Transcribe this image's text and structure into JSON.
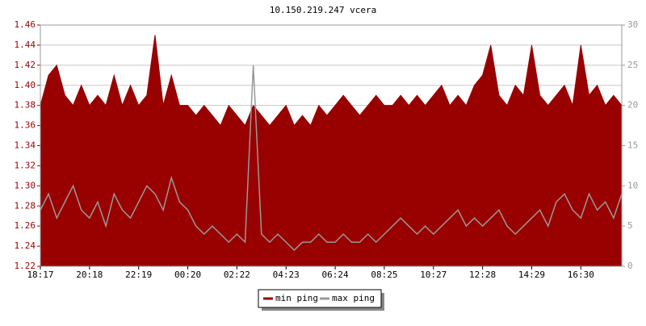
{
  "chart_data": {
    "type": "line",
    "title": "10.150.219.247 vcera",
    "categories": [
      "18:17",
      null,
      null,
      null,
      null,
      null,
      "20:18",
      null,
      null,
      null,
      null,
      null,
      "22:19",
      null,
      null,
      null,
      null,
      null,
      "00:20",
      null,
      null,
      null,
      null,
      null,
      "02:22",
      null,
      null,
      null,
      null,
      null,
      "04:23",
      null,
      null,
      null,
      null,
      null,
      "06:24",
      null,
      null,
      null,
      null,
      null,
      "08:25",
      null,
      null,
      null,
      null,
      null,
      "10:27",
      null,
      null,
      null,
      null,
      null,
      "12:28",
      null,
      null,
      null,
      null,
      null,
      "14:29",
      null,
      null,
      null,
      null,
      null,
      "16:30",
      null,
      null,
      null,
      null,
      null
    ],
    "series": [
      {
        "name": "min ping",
        "color": "#990000",
        "axis": "y",
        "values": [
          1.38,
          1.41,
          1.42,
          1.39,
          1.38,
          1.4,
          1.38,
          1.39,
          1.38,
          1.41,
          1.38,
          1.4,
          1.38,
          1.39,
          1.45,
          1.38,
          1.41,
          1.38,
          1.38,
          1.37,
          1.38,
          1.37,
          1.36,
          1.38,
          1.37,
          1.36,
          1.38,
          1.37,
          1.36,
          1.37,
          1.38,
          1.36,
          1.37,
          1.36,
          1.38,
          1.37,
          1.38,
          1.39,
          1.38,
          1.37,
          1.38,
          1.39,
          1.38,
          1.38,
          1.39,
          1.38,
          1.39,
          1.38,
          1.39,
          1.4,
          1.38,
          1.39,
          1.38,
          1.4,
          1.41,
          1.44,
          1.39,
          1.38,
          1.4,
          1.39,
          1.44,
          1.39,
          1.38,
          1.39,
          1.4,
          1.38,
          1.44,
          1.39,
          1.4,
          1.38,
          1.39,
          1.38
        ]
      },
      {
        "name": "max ping",
        "color": "#999999",
        "axis": "y2",
        "values": [
          7,
          9,
          6,
          8,
          10,
          7,
          6,
          8,
          5,
          9,
          7,
          6,
          8,
          10,
          9,
          7,
          11,
          8,
          7,
          5,
          4,
          5,
          4,
          3,
          4,
          3,
          25,
          4,
          3,
          4,
          3,
          2,
          3,
          3,
          4,
          3,
          3,
          4,
          3,
          3,
          4,
          3,
          4,
          5,
          6,
          5,
          4,
          5,
          4,
          5,
          6,
          7,
          5,
          6,
          5,
          6,
          7,
          5,
          4,
          5,
          6,
          7,
          5,
          8,
          9,
          7,
          6,
          9,
          7,
          8,
          6,
          9
        ]
      }
    ],
    "ylim": [
      1.22,
      1.46
    ],
    "yticks": [
      1.22,
      1.24,
      1.26,
      1.28,
      {
        "value": 1.3,
        "label": "1.30"
      },
      1.32,
      1.34,
      1.36,
      1.38,
      {
        "value": 1.4,
        "label": "1.40"
      },
      1.42,
      1.44,
      1.46
    ],
    "y2lim": [
      0,
      30
    ],
    "y2ticks": [
      0,
      5,
      10,
      15,
      20,
      25,
      30
    ],
    "grid": true
  }
}
